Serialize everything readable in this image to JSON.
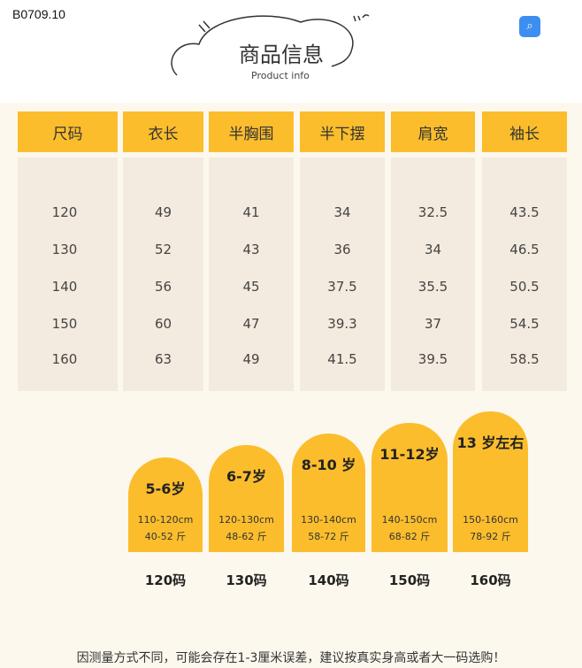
{
  "product_code": "B0709.10",
  "icons": {
    "scan": "scan-search-icon",
    "cloud": "cloud-outline-icon"
  },
  "colors": {
    "accent": "#fbbd2c",
    "background": "#fdf8ee",
    "scan_button": "#3d8ef0"
  },
  "heading": {
    "title": "商品信息",
    "subtitle": "Product info"
  },
  "table": {
    "headers": [
      "尺码",
      "衣长",
      "半胸围",
      "半下摆",
      "肩宽",
      "袖长"
    ],
    "rows": [
      [
        "120",
        "49",
        "41",
        "34",
        "32.5",
        "43.5"
      ],
      [
        "130",
        "52",
        "43",
        "36",
        "34",
        "46.5"
      ],
      [
        "140",
        "56",
        "45",
        "37.5",
        "35.5",
        "50.5"
      ],
      [
        "150",
        "60",
        "47",
        "39.3",
        "37",
        "54.5"
      ],
      [
        "160",
        "63",
        "49",
        "41.5",
        "39.5",
        "58.5"
      ]
    ]
  },
  "size_cards": [
    {
      "age": "5-6岁",
      "height": "110-120cm",
      "weight": "40-52 斤",
      "size": "120码"
    },
    {
      "age": "6-7岁",
      "height": "120-130cm",
      "weight": "48-62 斤",
      "size": "130码"
    },
    {
      "age": "8-10 岁",
      "height": "130-140cm",
      "weight": "58-72 斤",
      "size": "140码"
    },
    {
      "age": "11-12岁",
      "height": "140-150cm",
      "weight": "68-82 斤",
      "size": "150码"
    },
    {
      "age": "13 岁左右",
      "height": "150-160cm",
      "weight": "78-92 斤",
      "size": "160码"
    }
  ],
  "footer_note": "因测量方式不同，可能会存在1-3厘米误差，建议按真实身高或者大一码选购！"
}
